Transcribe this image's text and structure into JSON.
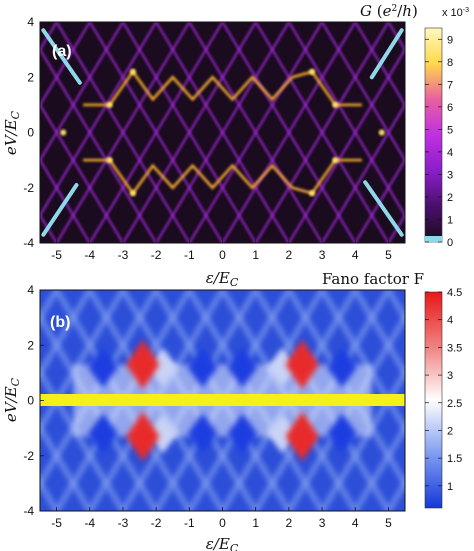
{
  "chart_data": [
    {
      "type": "heatmap",
      "panel_label": "(a)",
      "xlabel": "ε/E_C",
      "ylabel": "eV/E_C",
      "xlim": [
        -5.5,
        5.5
      ],
      "ylim": [
        -4,
        4
      ],
      "x_ticks": [
        "-5",
        "-4",
        "-3",
        "-2",
        "-1",
        "0",
        "1",
        "2",
        "3",
        "4",
        "5"
      ],
      "y_ticks": [
        "-4",
        "-2",
        "0",
        "2",
        "4"
      ],
      "colorbar_label": "G (e²/h)",
      "colorbar_exponent": "x 10⁻³",
      "colorbar_ticks": [
        "0",
        "1",
        "2",
        "3",
        "4",
        "5",
        "6",
        "7",
        "8",
        "9"
      ],
      "colorbar_range": [
        0,
        9.5
      ],
      "colormap": [
        "#1a0b1e",
        "#4a0f6b",
        "#8a1fc8",
        "#c030e0",
        "#e860a0",
        "#ffd84a",
        "#fff8c0"
      ],
      "negative_color": "#8fd8e8",
      "background_color": "#1a0b1e"
    },
    {
      "type": "heatmap",
      "panel_label": "(b)",
      "xlabel": "ε/E_C",
      "ylabel": "eV/E_C",
      "xlim": [
        -5.5,
        5.5
      ],
      "ylim": [
        -4,
        4
      ],
      "x_ticks": [
        "-5",
        "-4",
        "-3",
        "-2",
        "-1",
        "0",
        "1",
        "2",
        "3",
        "4",
        "5"
      ],
      "y_ticks": [
        "-4",
        "-2",
        "0",
        "2",
        "4"
      ],
      "colorbar_label": "Fano factor F",
      "colorbar_ticks": [
        "1",
        "1.5",
        "2",
        "2.5",
        "3",
        "3.5",
        "4",
        "4.5"
      ],
      "colorbar_range": [
        0.6,
        4.5
      ],
      "colormap": [
        "#1538d8",
        "#7f9cf0",
        "#ffffff",
        "#f08080",
        "#e81818"
      ],
      "zero_bias_band_color": "#f5ef1a",
      "background_color": "#2d4fd8"
    }
  ]
}
